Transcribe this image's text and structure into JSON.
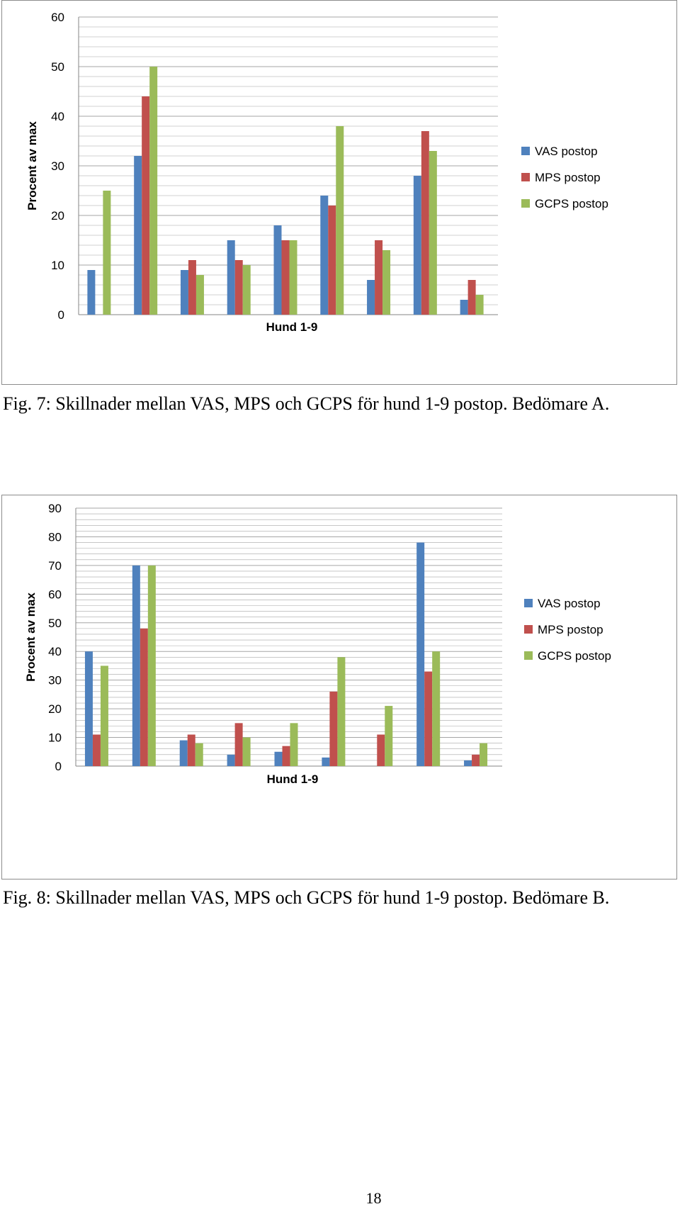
{
  "colors": {
    "vas": "#4f81bd",
    "mps": "#c0504d",
    "gcps": "#9bbb59",
    "grid": "#a6a6a6"
  },
  "chart_data": [
    {
      "type": "bar",
      "title": "",
      "ylabel": "Procent av max",
      "xlabel": "Hund 1-9",
      "ylim": [
        0,
        60
      ],
      "yticks": [
        0,
        10,
        20,
        30,
        40,
        50,
        60
      ],
      "minor_grid_step": 2,
      "grid": true,
      "legend": "right",
      "categories": [
        "",
        "",
        "",
        "",
        "",
        "",
        "",
        "",
        ""
      ],
      "series": [
        {
          "name": "VAS postop",
          "color": "#4f81bd",
          "values": [
            9,
            32,
            9,
            15,
            18,
            24,
            7,
            28,
            3
          ]
        },
        {
          "name": "MPS postop",
          "color": "#c0504d",
          "values": [
            0,
            44,
            11,
            11,
            15,
            22,
            15,
            37,
            7
          ]
        },
        {
          "name": "GCPS postop",
          "color": "#9bbb59",
          "values": [
            25,
            50,
            8,
            10,
            15,
            38,
            13,
            33,
            4
          ]
        }
      ]
    },
    {
      "type": "bar",
      "title": "",
      "ylabel": "Procent av max",
      "xlabel": "Hund 1-9",
      "ylim": [
        0,
        90
      ],
      "yticks": [
        0,
        10,
        20,
        30,
        40,
        50,
        60,
        70,
        80,
        90
      ],
      "minor_grid_step": 2,
      "grid": true,
      "legend": "right",
      "categories": [
        "",
        "",
        "",
        "",
        "",
        "",
        "",
        "",
        ""
      ],
      "series": [
        {
          "name": "VAS postop",
          "color": "#4f81bd",
          "values": [
            40,
            70,
            9,
            4,
            5,
            3,
            0,
            78,
            2
          ]
        },
        {
          "name": "MPS postop",
          "color": "#c0504d",
          "values": [
            11,
            48,
            11,
            15,
            7,
            26,
            11,
            33,
            4
          ]
        },
        {
          "name": "GCPS postop",
          "color": "#9bbb59",
          "values": [
            35,
            70,
            8,
            10,
            15,
            38,
            21,
            40,
            8
          ]
        }
      ]
    }
  ],
  "captions": {
    "fig7": "Fig. 7: Skillnader mellan VAS, MPS och GCPS för hund 1-9 postop. Bedömare A.",
    "fig8": "Fig. 8: Skillnader mellan VAS, MPS och GCPS för hund 1-9 postop. Bedömare B."
  },
  "page_number": "18"
}
